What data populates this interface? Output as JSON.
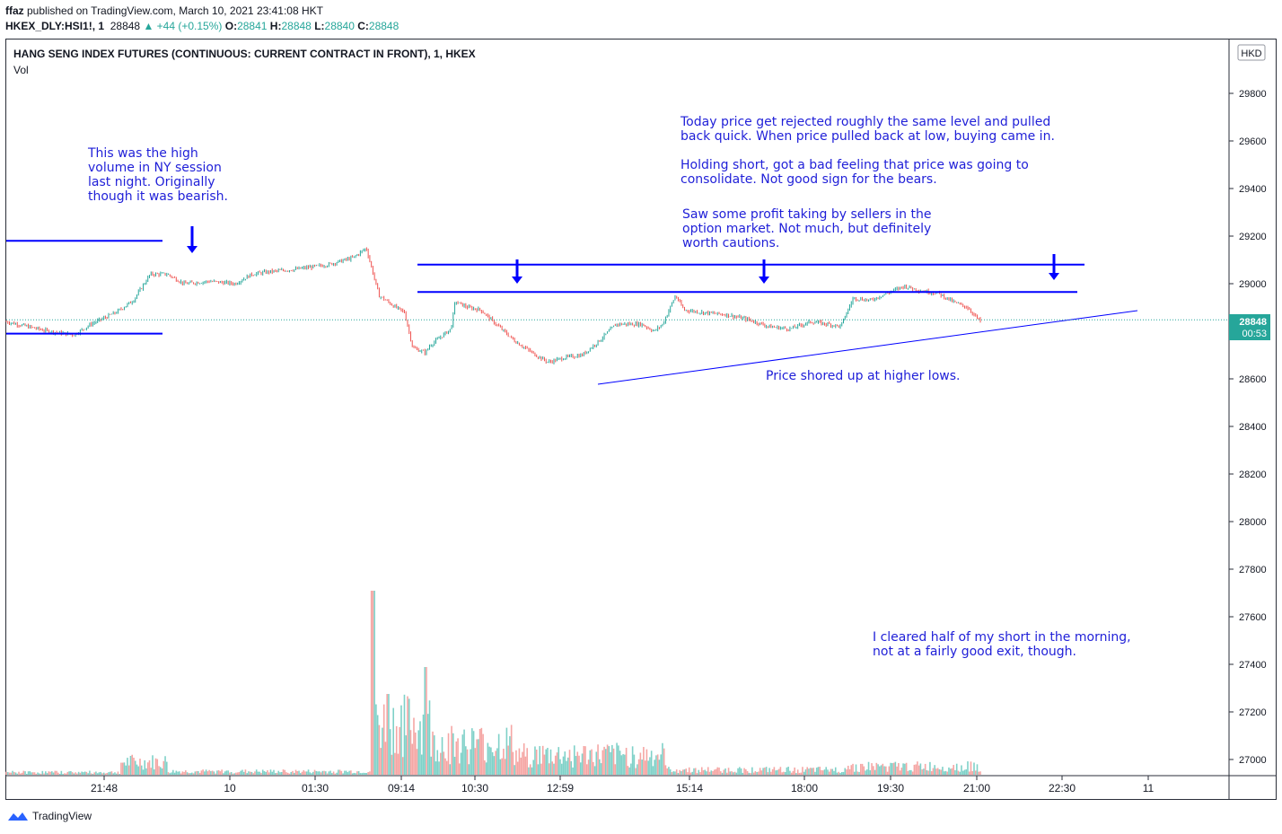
{
  "header": {
    "publisher_line": "ffaz published on TradingView.com, March 10, 2021 23:41:08 HKT",
    "publisher": "ffaz",
    "published_suffix": " published on TradingView.com, March 10, 2021 23:41:08 HKT",
    "symbol": "HKEX_DLY:HSI1!, 1",
    "last_price": "28848",
    "change": "+44 (+0.15%)",
    "open": "28841",
    "high": "28848",
    "low": "28840",
    "close": "28848"
  },
  "legend": {
    "title": "HANG SENG INDEX FUTURES (CONTINUOUS: CURRENT CONTRACT IN FRONT), 1, HKEX",
    "vol_label": "Vol"
  },
  "currency": "HKD",
  "price_tag": {
    "price": "28848",
    "countdown": "00:53"
  },
  "annotations": {
    "ny_session": "This was the high\nvolume in NY session\nlast night. Originally\nthough it was bearish.",
    "rejected": "Today price get rejected roughly the same level and pulled\nback quick. When price pulled back at low, buying came in.\n\nHolding short, got a bad feeling that price was going to\nconsolidate. Not good sign for the bears.",
    "profit_taking": "Saw some profit taking by sellers in the\noption market. Not much, but definitely\nworth cautions.",
    "higher_lows": "Price shored up at higher lows.",
    "cleared_half": "I cleared half of my short in the morning,\nnot at a fairly good exit, though."
  },
  "footer": {
    "brand": "TradingView"
  },
  "colors": {
    "up": "#26a69a",
    "down": "#ef5350",
    "annotation": "#1f1fd8",
    "line": "#0000ff"
  },
  "chart_data": {
    "type": "candlestick",
    "title": "HANG SENG INDEX FUTURES (CONTINUOUS: CURRENT CONTRACT IN FRONT), 1, HKEX",
    "y_ticks": [
      27000,
      27200,
      27400,
      27600,
      27800,
      28000,
      28200,
      28400,
      28600,
      29000,
      29200,
      29400,
      29600,
      29800
    ],
    "ylim": [
      26960,
      29990
    ],
    "x_ticks": [
      "21:48",
      "10",
      "01:30",
      "09:14",
      "10:30",
      "12:59",
      "15:14",
      "18:00",
      "19:30",
      "21:00",
      "22:30",
      "11"
    ],
    "last_price": 28848,
    "price_path": [
      [
        0.0,
        28840
      ],
      [
        0.05,
        28800
      ],
      [
        0.08,
        28785
      ],
      [
        0.1,
        28830
      ],
      [
        0.13,
        28880
      ],
      [
        0.15,
        28930
      ],
      [
        0.17,
        29040
      ],
      [
        0.19,
        29040
      ],
      [
        0.21,
        29000
      ],
      [
        0.24,
        29010
      ],
      [
        0.27,
        29000
      ],
      [
        0.29,
        29040
      ],
      [
        0.31,
        29050
      ],
      [
        0.34,
        29060
      ],
      [
        0.38,
        29080
      ],
      [
        0.41,
        29110
      ],
      [
        0.425,
        29150
      ],
      [
        0.44,
        28950
      ],
      [
        0.46,
        28900
      ],
      [
        0.47,
        28880
      ],
      [
        0.48,
        28730
      ],
      [
        0.495,
        28710
      ],
      [
        0.5,
        28740
      ],
      [
        0.525,
        28810
      ],
      [
        0.53,
        28925
      ],
      [
        0.545,
        28900
      ],
      [
        0.56,
        28890
      ],
      [
        0.575,
        28840
      ],
      [
        0.6,
        28760
      ],
      [
        0.625,
        28700
      ],
      [
        0.64,
        28670
      ],
      [
        0.66,
        28690
      ],
      [
        0.68,
        28700
      ],
      [
        0.7,
        28760
      ],
      [
        0.72,
        28830
      ],
      [
        0.75,
        28830
      ],
      [
        0.765,
        28800
      ],
      [
        0.775,
        28830
      ],
      [
        0.79,
        28950
      ],
      [
        0.8,
        28890
      ],
      [
        0.82,
        28880
      ],
      [
        0.85,
        28870
      ],
      [
        0.875,
        28850
      ],
      [
        0.9,
        28820
      ],
      [
        0.925,
        28810
      ],
      [
        0.95,
        28840
      ],
      [
        0.97,
        28830
      ],
      [
        0.985,
        28820
      ],
      [
        1.0,
        28940
      ],
      [
        1.02,
        28930
      ],
      [
        1.04,
        28960
      ],
      [
        1.06,
        28990
      ],
      [
        1.08,
        28970
      ],
      [
        1.1,
        28960
      ],
      [
        1.12,
        28920
      ],
      [
        1.135,
        28900
      ],
      [
        1.15,
        28840
      ]
    ],
    "horizontal_levels": [
      29180,
      28790,
      29080,
      28965
    ],
    "trendline": [
      [
        28580,
        28888
      ]
    ],
    "volume_peaks": [
      1100,
      750,
      580,
      700,
      500,
      460,
      280
    ]
  }
}
